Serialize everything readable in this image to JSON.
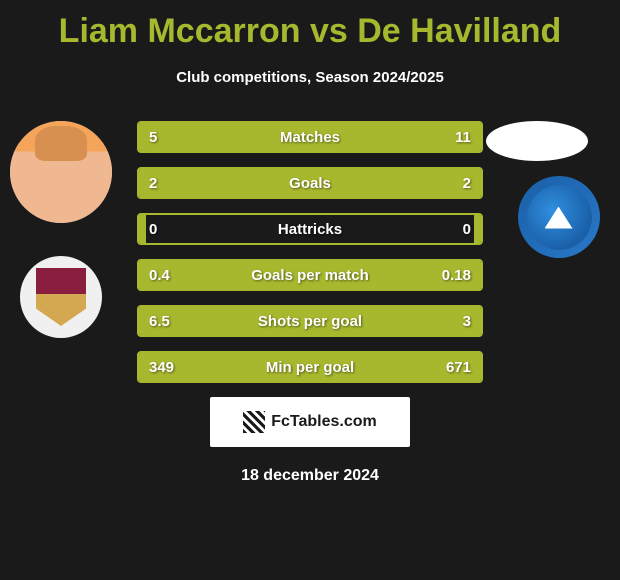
{
  "title": "Liam Mccarron vs De Havilland",
  "subtitle": "Club competitions, Season 2024/2025",
  "footer_logo": "FcTables.com",
  "footer_date": "18 december 2024",
  "colors": {
    "accent": "#a8b82e",
    "background": "#1a1a1a",
    "text": "#ffffff",
    "club_right": "#1a5fa8"
  },
  "stats": [
    {
      "label": "Matches",
      "left_value": "5",
      "right_value": "11",
      "left_pct": 31,
      "right_pct": 69
    },
    {
      "label": "Goals",
      "left_value": "2",
      "right_value": "2",
      "left_pct": 50,
      "right_pct": 50
    },
    {
      "label": "Hattricks",
      "left_value": "0",
      "right_value": "0",
      "left_pct": 2,
      "right_pct": 2
    },
    {
      "label": "Goals per match",
      "left_value": "0.4",
      "right_value": "0.18",
      "left_pct": 69,
      "right_pct": 31
    },
    {
      "label": "Shots per goal",
      "left_value": "6.5",
      "right_value": "3",
      "left_pct": 32,
      "right_pct": 68
    },
    {
      "label": "Min per goal",
      "left_value": "349",
      "right_value": "671",
      "left_pct": 66,
      "right_pct": 34
    }
  ]
}
